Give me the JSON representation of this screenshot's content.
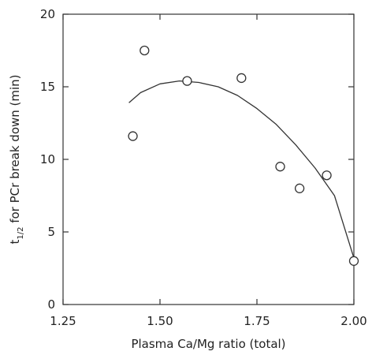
{
  "chart_data": {
    "type": "scatter",
    "title": "",
    "xlabel": "Plasma Ca/Mg ratio (total)",
    "ylabel": {
      "prefix": "t",
      "subscript": "1/2",
      "suffix": " for PCr break down (min)"
    },
    "xlim": [
      1.25,
      2.0
    ],
    "ylim": [
      0,
      20
    ],
    "xticks": [
      "1.25",
      "1.50",
      "1.75",
      "2.00"
    ],
    "yticks": [
      "0",
      "5",
      "10",
      "15",
      "20"
    ],
    "grid": false,
    "legend": "none",
    "series": [
      {
        "marker": "open-circle",
        "points": [
          {
            "x": 1.43,
            "y": 11.6
          },
          {
            "x": 1.46,
            "y": 17.5
          },
          {
            "x": 1.57,
            "y": 15.4
          },
          {
            "x": 1.71,
            "y": 15.6
          },
          {
            "x": 1.81,
            "y": 9.5
          },
          {
            "x": 1.86,
            "y": 8.0
          },
          {
            "x": 1.93,
            "y": 8.9
          },
          {
            "x": 2.0,
            "y": 3.0
          }
        ]
      }
    ],
    "fit_curve": {
      "type": "quadratic",
      "x": [
        1.42,
        1.45,
        1.5,
        1.55,
        1.6,
        1.65,
        1.7,
        1.75,
        1.8,
        1.85,
        1.9,
        1.95,
        2.0
      ],
      "y": [
        13.9,
        14.6,
        15.2,
        15.4,
        15.3,
        15.0,
        14.4,
        13.5,
        12.4,
        11.0,
        9.4,
        7.5,
        3.2
      ]
    },
    "colors": {
      "ink": "#333333",
      "background": "#ffffff"
    }
  }
}
